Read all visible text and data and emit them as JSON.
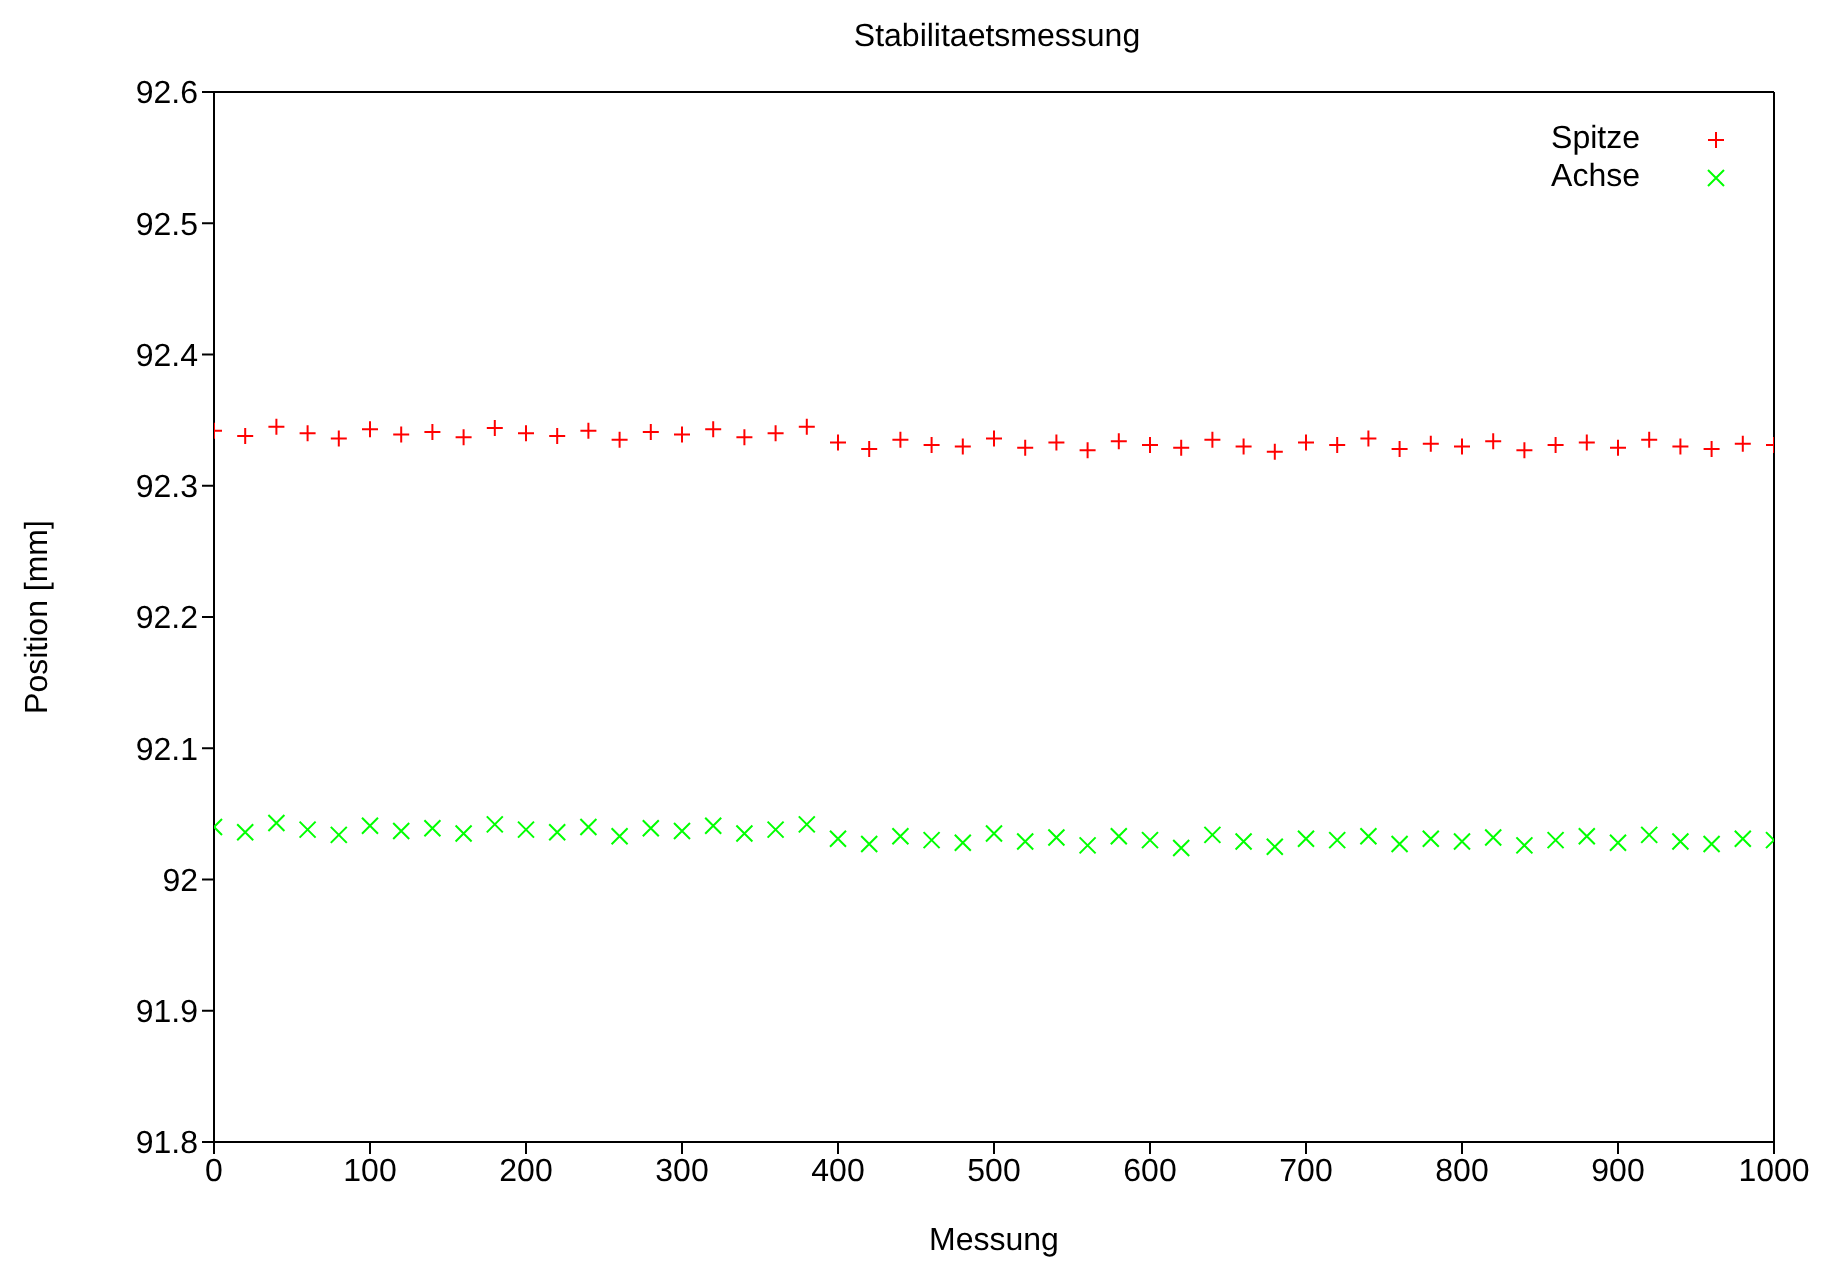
{
  "chart_data": {
    "type": "scatter",
    "title": "Stabilitaetsmessung",
    "xlabel": "Messung",
    "ylabel": "Position [mm]",
    "x": [
      0,
      20,
      40,
      60,
      80,
      100,
      120,
      140,
      160,
      180,
      200,
      220,
      240,
      260,
      280,
      300,
      320,
      340,
      360,
      380,
      400,
      420,
      440,
      460,
      480,
      500,
      520,
      540,
      560,
      580,
      600,
      620,
      640,
      660,
      680,
      700,
      720,
      740,
      760,
      780,
      800,
      820,
      840,
      860,
      880,
      900,
      920,
      940,
      960,
      980,
      1000
    ],
    "series": [
      {
        "name": "Spitze",
        "color": "#ff0000",
        "values": [
          92.342,
          92.338,
          92.345,
          92.34,
          92.336,
          92.343,
          92.339,
          92.341,
          92.337,
          92.344,
          92.34,
          92.338,
          92.342,
          92.335,
          92.341,
          92.339,
          92.343,
          92.337,
          92.34,
          92.345,
          92.333,
          92.328,
          92.335,
          92.331,
          92.33,
          92.336,
          92.329,
          92.333,
          92.327,
          92.334,
          92.331,
          92.329,
          92.335,
          92.33,
          92.326,
          92.333,
          92.331,
          92.336,
          92.328,
          92.332,
          92.33,
          92.334,
          92.327,
          92.331,
          92.333,
          92.329,
          92.335,
          92.33,
          92.328,
          92.332,
          92.331
        ]
      },
      {
        "name": "Achse",
        "color": "#00ff00",
        "values": [
          92.04,
          92.036,
          92.043,
          92.038,
          92.034,
          92.041,
          92.037,
          92.039,
          92.035,
          92.042,
          92.038,
          92.036,
          92.04,
          92.033,
          92.039,
          92.037,
          92.041,
          92.035,
          92.038,
          92.042,
          92.031,
          92.027,
          92.033,
          92.03,
          92.028,
          92.035,
          92.029,
          92.032,
          92.026,
          92.033,
          92.03,
          92.024,
          92.034,
          92.029,
          92.025,
          92.031,
          92.03,
          92.033,
          92.027,
          92.031,
          92.029,
          92.032,
          92.026,
          92.03,
          92.033,
          92.028,
          92.034,
          92.029,
          92.027,
          92.031,
          92.03
        ]
      }
    ],
    "xlim": [
      0,
      1000
    ],
    "xticks": [
      0,
      100,
      200,
      300,
      400,
      500,
      600,
      700,
      800,
      900,
      1000
    ],
    "ylim": [
      91.8,
      92.6
    ],
    "yticks": [
      91.8,
      91.9,
      92,
      92.1,
      92.2,
      92.3,
      92.4,
      92.5,
      92.6
    ],
    "legend": "top right",
    "marker": "cross"
  }
}
